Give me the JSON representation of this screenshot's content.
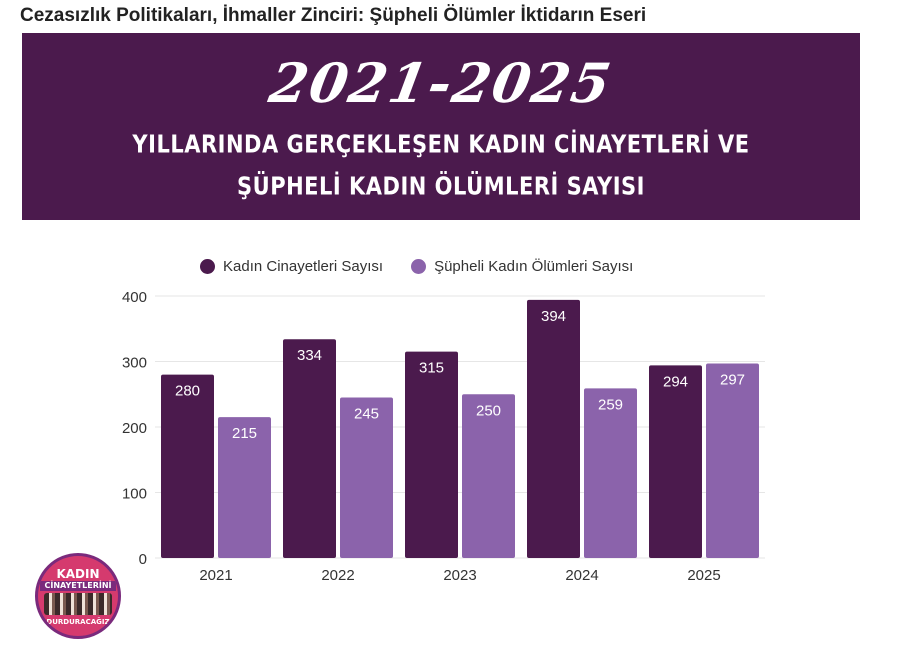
{
  "article": {
    "title": "Cezasızlık Politikaları, İhmaller Zinciri: Şüpheli Ölümler İktidarın Eseri"
  },
  "banner": {
    "years": "2021-2025",
    "line1": "YILLARINDA GERÇEKLEŞEN KADIN CİNAYETLERİ VE",
    "line2": "ŞÜPHELİ KADIN ÖLÜMLERİ SAYISI"
  },
  "logo": {
    "top": "KADIN",
    "mid": "CİNAYETLERİNİ",
    "bottom": "DURDURACAĞIZ"
  },
  "colors": {
    "banner_bg": "#4b1a4d",
    "series_dark": "#4b1a4d",
    "series_light": "#8b63ab"
  },
  "chart_data": {
    "type": "bar",
    "categories": [
      "2021",
      "2022",
      "2023",
      "2024",
      "2025"
    ],
    "series": [
      {
        "name": "Kadın Cinayetleri Sayısı",
        "values": [
          280,
          334,
          315,
          394,
          294
        ],
        "color": "#4b1a4d"
      },
      {
        "name": "Şüpheli Kadın Ölümleri Sayısı",
        "values": [
          215,
          245,
          250,
          259,
          297
        ],
        "color": "#8b63ab"
      }
    ],
    "yticks": [
      0,
      100,
      200,
      300,
      400
    ],
    "ylim": [
      0,
      400
    ],
    "grid": true,
    "legend_position": "top-center",
    "data_labels": true
  }
}
